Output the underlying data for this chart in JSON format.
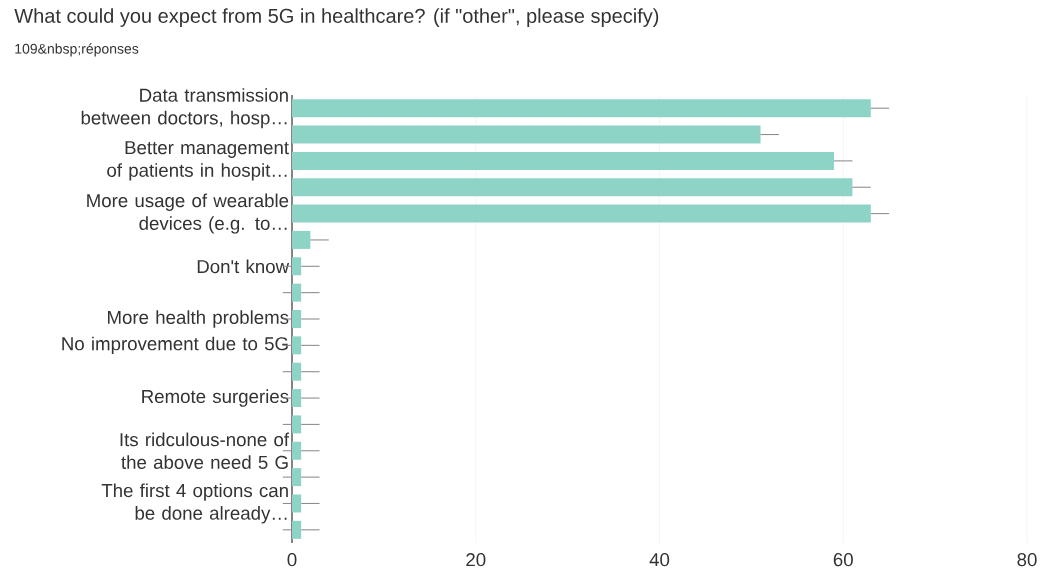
{
  "chart_data": {
    "type": "bar",
    "orientation": "horizontal",
    "title": "What could you expect from 5G in healthcare? (if \"other\", please specify)",
    "subtitle": "109&nbsp;réponses",
    "categories": [
      "Data transmission between doctors, hosp…",
      null,
      "Better management of patients in hospit…",
      null,
      "More usage of wearable devices (e.g. to…",
      null,
      "Don't know",
      null,
      "More health problems",
      "No improvement due to 5G",
      null,
      "Remote surgeries",
      null,
      "Its ridculous-none of the above need 5 G",
      null,
      "The first 4 options can be done already…",
      null
    ],
    "values": [
      63,
      51,
      59,
      61,
      63,
      2,
      1,
      1,
      1,
      1,
      1,
      1,
      1,
      1,
      1,
      1,
      1
    ],
    "errors": [
      2,
      2,
      2,
      2,
      2,
      2,
      2,
      2,
      2,
      2,
      2,
      2,
      2,
      2,
      2,
      2,
      2
    ],
    "color": "#8ed4c6",
    "xlim": [
      0,
      80
    ],
    "xticks": [
      0,
      20,
      40,
      60,
      80
    ],
    "grid": "x"
  }
}
